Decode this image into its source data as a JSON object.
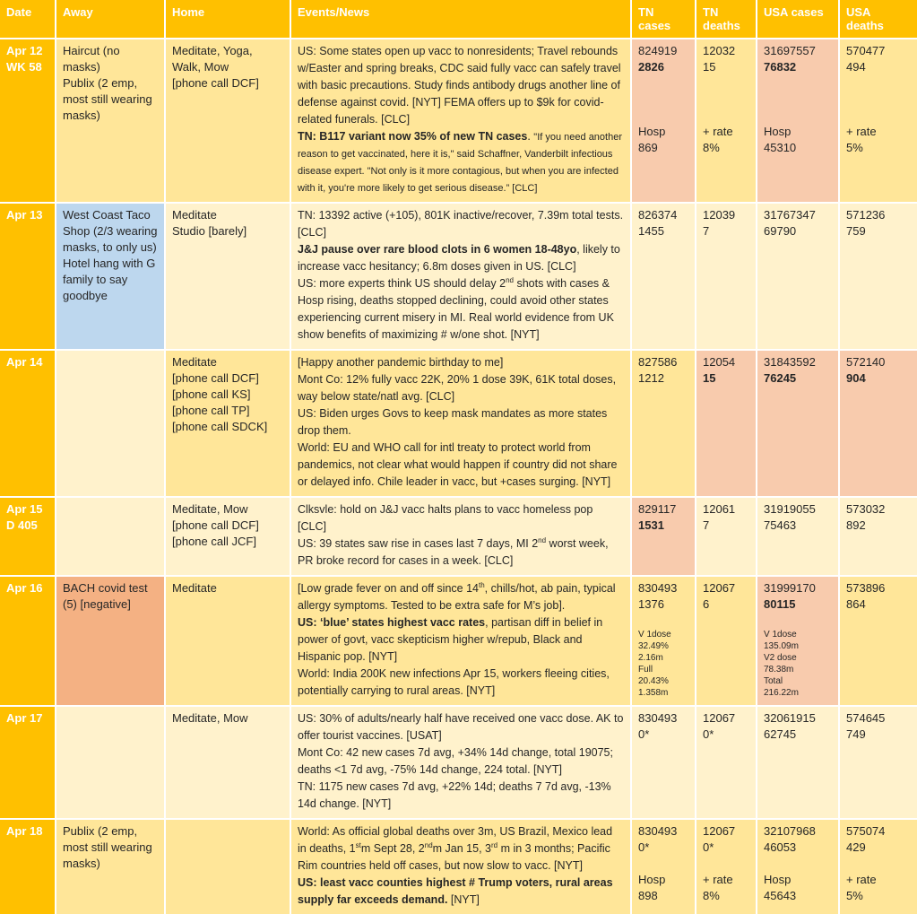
{
  "colors": {
    "orange": "#FFC000",
    "gold": "#FFE699",
    "cream": "#FFF2CC",
    "salmon": "#F8CBAD",
    "peach": "#F4B183",
    "blue": "#BDD7EE",
    "header_text": "#FFFFFF",
    "body_text": "#262626",
    "grid": "#FFFFFF"
  },
  "table": {
    "columns": [
      "Date",
      "Away",
      "Home",
      "Events/News",
      "TN cases",
      "TN deaths",
      "USA cases",
      "USA deaths"
    ],
    "rows": [
      {
        "date": [
          "Apr 12",
          "WK 58"
        ],
        "away": {
          "bg": "gold",
          "text": "Haircut (no masks)\nPublix (2 emp, most still wearing masks)"
        },
        "home": {
          "bg": "gold",
          "text": "Meditate, Yoga, Walk, Mow\n[phone call DCF]"
        },
        "events": {
          "bg": "gold",
          "segments": [
            {
              "text": "US: Some states open up vacc to nonresidents; Travel rebounds w/Easter and spring breaks, CDC said fully vacc can safely travel with basic precautions. Study finds antibody drugs another line of defense against covid. [NYT] FEMA offers up to $9k for covid-related funerals. [CLC]\n"
            },
            {
              "text": "TN: B117 variant now 35% of new TN cases",
              "bold": true
            },
            {
              "text": ". "
            },
            {
              "text": "\"If you need another reason to get vaccinated, here it is,\" said Schaffner, Vanderbilt infectious disease expert. \"Not only is it more contagious, but when you are infected with it, you're more likely to get serious disease.” [CLC]",
              "small": true
            }
          ]
        },
        "tn_cases": {
          "bg": "salmon",
          "lines": [
            {
              "text": "824919"
            },
            {
              "text": "2826",
              "bold": true
            },
            {
              "text": ""
            },
            {
              "text": ""
            },
            {
              "text": ""
            },
            {
              "text": "Hosp"
            },
            {
              "text": "869"
            }
          ]
        },
        "tn_deaths": {
          "bg": "gold",
          "lines": [
            {
              "text": "12032"
            },
            {
              "text": "15"
            },
            {
              "text": ""
            },
            {
              "text": ""
            },
            {
              "text": ""
            },
            {
              "text": "+ rate"
            },
            {
              "text": "8%"
            }
          ]
        },
        "usa_cases": {
          "bg": "salmon",
          "lines": [
            {
              "text": "31697557"
            },
            {
              "text": "76832",
              "bold": true
            },
            {
              "text": ""
            },
            {
              "text": ""
            },
            {
              "text": ""
            },
            {
              "text": "Hosp"
            },
            {
              "text": "45310"
            }
          ]
        },
        "usa_deaths": {
          "bg": "gold",
          "lines": [
            {
              "text": "570477"
            },
            {
              "text": "494"
            },
            {
              "text": ""
            },
            {
              "text": ""
            },
            {
              "text": ""
            },
            {
              "text": "+ rate"
            },
            {
              "text": "5%"
            }
          ]
        }
      },
      {
        "date": [
          "Apr 13"
        ],
        "away": {
          "bg": "blue",
          "text": "West Coast Taco Shop (2/3 wearing masks, to only us)\nHotel hang with G family to say goodbye"
        },
        "home": {
          "bg": "cream",
          "text": "Meditate\nStudio [barely]"
        },
        "events": {
          "bg": "cream",
          "segments": [
            {
              "text": "TN: 13392 active (+105), 801K inactive/recover, 7.39m total tests. [CLC]\n"
            },
            {
              "text": "J&J pause over rare blood clots in 6 women 18-48yo",
              "bold": true
            },
            {
              "text": ", likely to increase vacc hesitancy; 6.8m doses given in US. [CLC]\nUS: more experts think US should delay 2"
            },
            {
              "text": "nd",
              "sup": true
            },
            {
              "text": " shots with cases & Hosp rising, deaths stopped declining, could avoid other states experiencing current misery in MI. Real world evidence from UK show benefits of maximizing # w/one shot. [NYT]"
            }
          ]
        },
        "tn_cases": {
          "bg": "cream",
          "lines": [
            {
              "text": "826374"
            },
            {
              "text": "1455"
            }
          ]
        },
        "tn_deaths": {
          "bg": "cream",
          "lines": [
            {
              "text": "12039"
            },
            {
              "text": "7"
            }
          ]
        },
        "usa_cases": {
          "bg": "cream",
          "lines": [
            {
              "text": "31767347"
            },
            {
              "text": "69790"
            }
          ]
        },
        "usa_deaths": {
          "bg": "cream",
          "lines": [
            {
              "text": "571236"
            },
            {
              "text": "759"
            }
          ]
        }
      },
      {
        "date": [
          "Apr 14"
        ],
        "away": {
          "bg": "cream",
          "text": ""
        },
        "home": {
          "bg": "gold",
          "text": "Meditate\n[phone call DCF]\n[phone call KS]\n[phone call TP]\n[phone call SDCK]"
        },
        "events": {
          "bg": "gold",
          "segments": [
            {
              "text": "[Happy another pandemic birthday to me]\nMont Co: 12% fully vacc 22K, 20% 1 dose 39K, 61K total doses, way below state/natl avg. [CLC]\nUS: Biden urges Govs to keep mask mandates as more states drop them.\nWorld: EU and WHO call for intl treaty to protect world from pandemics, not clear what would happen if country did not share or delayed info. Chile leader in vacc, but +cases surging. [NYT]"
            }
          ]
        },
        "tn_cases": {
          "bg": "gold",
          "lines": [
            {
              "text": "827586"
            },
            {
              "text": "1212"
            }
          ]
        },
        "tn_deaths": {
          "bg": "salmon",
          "lines": [
            {
              "text": "12054"
            },
            {
              "text": "15",
              "bold": true
            }
          ]
        },
        "usa_cases": {
          "bg": "salmon",
          "lines": [
            {
              "text": "31843592"
            },
            {
              "text": "76245",
              "bold": true
            }
          ]
        },
        "usa_deaths": {
          "bg": "salmon",
          "lines": [
            {
              "text": "572140"
            },
            {
              "text": "904",
              "bold": true
            }
          ]
        }
      },
      {
        "date": [
          "Apr 15",
          "D 405"
        ],
        "away": {
          "bg": "cream",
          "text": ""
        },
        "home": {
          "bg": "cream",
          "text": "Meditate, Mow\n[phone call DCF]\n[phone call JCF]"
        },
        "events": {
          "bg": "cream",
          "segments": [
            {
              "text": "Clksvle: hold on J&J vacc halts plans to vacc homeless pop [CLC]\nUS: 39 states saw rise in cases last 7 days, MI 2"
            },
            {
              "text": "nd",
              "sup": true
            },
            {
              "text": " worst week, PR broke record for cases in a week. [CLC]"
            }
          ]
        },
        "tn_cases": {
          "bg": "salmon",
          "lines": [
            {
              "text": "829117"
            },
            {
              "text": "1531",
              "bold": true
            }
          ]
        },
        "tn_deaths": {
          "bg": "cream",
          "lines": [
            {
              "text": "12061"
            },
            {
              "text": "7"
            }
          ]
        },
        "usa_cases": {
          "bg": "cream",
          "lines": [
            {
              "text": "31919055"
            },
            {
              "text": "75463"
            }
          ]
        },
        "usa_deaths": {
          "bg": "cream",
          "lines": [
            {
              "text": "573032"
            },
            {
              "text": "892"
            }
          ]
        }
      },
      {
        "date": [
          "Apr 16"
        ],
        "away": {
          "bg": "peach",
          "text": "BACH covid test (5) [negative]"
        },
        "home": {
          "bg": "gold",
          "text": "Meditate"
        },
        "events": {
          "bg": "gold",
          "segments": [
            {
              "text": "[Low grade fever on and off since 14"
            },
            {
              "text": "th",
              "sup": true
            },
            {
              "text": ", chills/hot, ab pain, typical allergy symptoms. Tested to be extra safe for M’s job].\n"
            },
            {
              "text": "US: ‘blue’ states highest vacc rates",
              "bold": true
            },
            {
              "text": ", partisan diff in belief in power of govt, vacc skepticism higher w/repub, Black and Hispanic pop. [NYT]\nWorld: India 200K new infections Apr 15, workers fleeing cities, potentially carrying to rural areas. [NYT]"
            }
          ]
        },
        "tn_cases": {
          "bg": "gold",
          "lines": [
            {
              "text": "830493"
            },
            {
              "text": "1376"
            },
            {
              "text": ""
            },
            {
              "text": "V 1dose",
              "small": true
            },
            {
              "text": "32.49%",
              "small": true
            },
            {
              "text": "2.16m",
              "small": true
            },
            {
              "text": "Full",
              "small": true
            },
            {
              "text": "20.43%",
              "small": true
            },
            {
              "text": "1.358m",
              "small": true
            }
          ]
        },
        "tn_deaths": {
          "bg": "gold",
          "lines": [
            {
              "text": "12067"
            },
            {
              "text": "6"
            }
          ]
        },
        "usa_cases": {
          "bg": "salmon",
          "lines": [
            {
              "text": "31999170"
            },
            {
              "text": "80115",
              "bold": true
            },
            {
              "text": ""
            },
            {
              "text": "V 1dose",
              "small": true
            },
            {
              "text": "135.09m",
              "small": true
            },
            {
              "text": "V2 dose",
              "small": true
            },
            {
              "text": "78.38m",
              "small": true
            },
            {
              "text": "Total",
              "small": true
            },
            {
              "text": "216.22m",
              "small": true
            }
          ]
        },
        "usa_deaths": {
          "bg": "gold",
          "lines": [
            {
              "text": "573896"
            },
            {
              "text": "864"
            }
          ]
        }
      },
      {
        "date": [
          "Apr 17"
        ],
        "away": {
          "bg": "cream",
          "text": ""
        },
        "home": {
          "bg": "cream",
          "text": "Meditate, Mow"
        },
        "events": {
          "bg": "cream",
          "segments": [
            {
              "text": "US: 30% of adults/nearly half have received one vacc dose. AK to offer tourist vaccines. [USAT]\nMont Co: 42 new cases 7d avg, +34% 14d change, total 19075; deaths <1 7d avg, -75% 14d change, 224 total. [NYT]\nTN: 1175 new cases 7d avg, +22% 14d; deaths 7 7d avg, -13% 14d change. [NYT]"
            }
          ]
        },
        "tn_cases": {
          "bg": "cream",
          "lines": [
            {
              "text": "830493"
            },
            {
              "text": "0*"
            }
          ]
        },
        "tn_deaths": {
          "bg": "cream",
          "lines": [
            {
              "text": "12067"
            },
            {
              "text": "0*"
            }
          ]
        },
        "usa_cases": {
          "bg": "cream",
          "lines": [
            {
              "text": "32061915"
            },
            {
              "text": "62745"
            }
          ]
        },
        "usa_deaths": {
          "bg": "cream",
          "lines": [
            {
              "text": "574645"
            },
            {
              "text": "749"
            }
          ]
        }
      },
      {
        "date": [
          "Apr 18"
        ],
        "away": {
          "bg": "gold",
          "text": "Publix (2 emp, most still wearing masks)"
        },
        "home": {
          "bg": "gold",
          "text": ""
        },
        "events": {
          "bg": "gold",
          "segments": [
            {
              "text": "World: As official global deaths over 3m, US Brazil, Mexico lead in deaths, 1"
            },
            {
              "text": "st",
              "sup": true
            },
            {
              "text": "m Sept 28, 2"
            },
            {
              "text": "nd",
              "sup": true
            },
            {
              "text": "m Jan 15, 3"
            },
            {
              "text": "rd",
              "sup": true
            },
            {
              "text": " m in 3 months; Pacific Rim countries held off cases, but now slow to vacc. [NYT]\n"
            },
            {
              "text": "US: least vacc counties highest # Trump voters, rural areas supply far exceeds demand.",
              "bold": true
            },
            {
              "text": " [NYT]"
            }
          ]
        },
        "tn_cases": {
          "bg": "gold",
          "lines": [
            {
              "text": "830493"
            },
            {
              "text": "0*"
            },
            {
              "text": ""
            },
            {
              "text": "Hosp"
            },
            {
              "text": "898"
            }
          ]
        },
        "tn_deaths": {
          "bg": "gold",
          "lines": [
            {
              "text": "12067"
            },
            {
              "text": "0*"
            },
            {
              "text": ""
            },
            {
              "text": "+ rate"
            },
            {
              "text": "8%"
            }
          ]
        },
        "usa_cases": {
          "bg": "gold",
          "lines": [
            {
              "text": "32107968"
            },
            {
              "text": "46053"
            },
            {
              "text": ""
            },
            {
              "text": "Hosp"
            },
            {
              "text": "45643"
            }
          ]
        },
        "usa_deaths": {
          "bg": "gold",
          "lines": [
            {
              "text": "575074"
            },
            {
              "text": "429"
            },
            {
              "text": ""
            },
            {
              "text": "+ rate"
            },
            {
              "text": "5%"
            }
          ]
        }
      }
    ]
  }
}
